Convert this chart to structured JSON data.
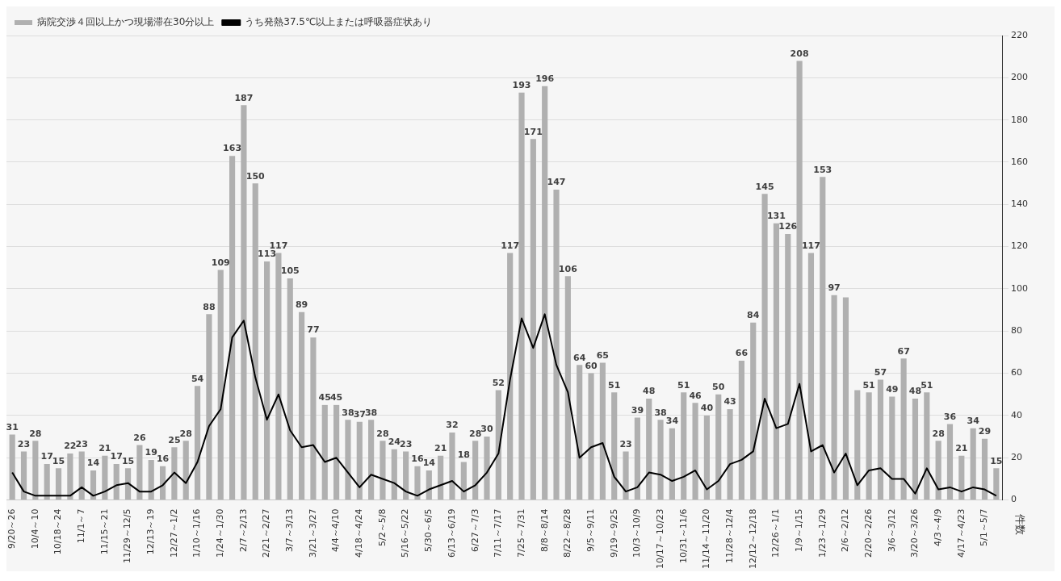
{
  "chart_data": {
    "type": "bar",
    "categories": [
      "9/20～26",
      null,
      "10/4～10",
      null,
      "10/18～24",
      null,
      "11/1～7",
      null,
      "11/15～21",
      null,
      "11/29～12/5",
      null,
      "12/13～19",
      null,
      "12/27～1/2",
      null,
      "1/10～1/16",
      null,
      "1/24～1/30",
      null,
      "2/7～2/13",
      null,
      "2/21～2/27",
      null,
      "3/7～3/13",
      null,
      "3/21～3/27",
      null,
      "4/4～4/10",
      null,
      "4/18～4/24",
      null,
      "5/2～5/8",
      null,
      "5/16～5/22",
      null,
      "5/30～6/5",
      null,
      "6/13～6/19",
      null,
      "6/27～7/3",
      null,
      "7/11～7/17",
      null,
      "7/25～7/31",
      null,
      "8/8～8/14",
      null,
      "8/22～8/28",
      null,
      "9/5～9/11",
      null,
      "9/19～9/25",
      null,
      "10/3～10/9",
      null,
      "10/17～10/23",
      null,
      "10/31～11/6",
      null,
      "11/14～11/20",
      null,
      "11/28～12/4",
      null,
      "12/12～12/18",
      null,
      "12/26～1/1",
      null,
      "1/9～1/15",
      null,
      "1/23～1/29",
      null,
      "2/6～2/12",
      null,
      "2/20～2/26",
      null,
      "3/6～3/12",
      null,
      "3/20～3/26",
      null,
      "4/3～4/9",
      null,
      "4/17～4/23",
      null,
      "5/1～5/7",
      null
    ],
    "series": [
      {
        "name": "病院交渉４回以上かつ現場滞在30分以上",
        "color": "#b0b0b0",
        "values": [
          31,
          23,
          28,
          17,
          15,
          22,
          23,
          14,
          21,
          17,
          15,
          26,
          19,
          16,
          25,
          28,
          54,
          88,
          109,
          163,
          187,
          150,
          113,
          117,
          105,
          89,
          77,
          45,
          45,
          38,
          37,
          38,
          28,
          24,
          23,
          16,
          14,
          21,
          32,
          18,
          28,
          30,
          52,
          117,
          193,
          171,
          196,
          147,
          106,
          64,
          60,
          65,
          51,
          23,
          39,
          48,
          38,
          34,
          51,
          46,
          40,
          50,
          43,
          66,
          84,
          145,
          131,
          126,
          208,
          117,
          153,
          97,
          96,
          52,
          51,
          57,
          49,
          67,
          48,
          51,
          28,
          36,
          21,
          34,
          29,
          15
        ],
        "value_labels": [
          "31",
          "23",
          "28",
          "17",
          "15",
          "22",
          "23",
          "14",
          "21",
          "17",
          "15",
          "26",
          "19",
          "16",
          "25",
          "28",
          "54",
          "88",
          "109",
          "163",
          "187",
          "150",
          "113",
          "117",
          "105",
          "89",
          "77",
          "45",
          "45",
          "38",
          "37",
          "38",
          "28",
          "24",
          "23",
          "16",
          "14",
          "21",
          "32",
          "18",
          "28",
          "30",
          "52",
          "117",
          "193",
          "171",
          "196",
          "147",
          "106",
          "64",
          "60",
          "65",
          "51",
          "23",
          "39",
          "48",
          "38",
          "34",
          "51",
          "46",
          "40",
          "50",
          "43",
          "66",
          "84",
          "145",
          "131",
          "126",
          "208",
          "117",
          "153",
          "97",
          null,
          null,
          "51",
          "57",
          "49",
          "67",
          "48",
          "51",
          "28",
          "36",
          "21",
          "34",
          "29",
          "15"
        ]
      },
      {
        "name": "うち発熱37.5℃以上または呼吸器症状あり",
        "type": "line",
        "color": "#000000",
        "values": [
          13,
          4,
          2,
          2,
          2,
          2,
          6,
          2,
          4,
          7,
          8,
          4,
          4,
          7,
          13,
          8,
          18,
          35,
          43,
          77,
          85,
          58,
          38,
          50,
          33,
          25,
          26,
          18,
          20,
          13,
          6,
          12,
          10,
          8,
          4,
          2,
          5,
          7,
          9,
          4,
          7,
          13,
          22,
          57,
          86,
          72,
          88,
          64,
          51,
          20,
          25,
          27,
          11,
          4,
          6,
          13,
          12,
          9,
          11,
          14,
          5,
          9,
          17,
          19,
          23,
          48,
          34,
          36,
          55,
          23,
          26,
          13,
          22,
          7,
          14,
          15,
          10,
          10,
          3,
          15,
          5,
          6,
          4,
          6,
          5,
          2
        ]
      }
    ],
    "ylabel": "件数",
    "ylim": [
      0,
      220
    ],
    "yticks": [
      0,
      20,
      40,
      60,
      80,
      100,
      120,
      140,
      160,
      180,
      200,
      220
    ],
    "grid": "y",
    "legend": "top left",
    "marker": "none",
    "line_style": "solid"
  }
}
